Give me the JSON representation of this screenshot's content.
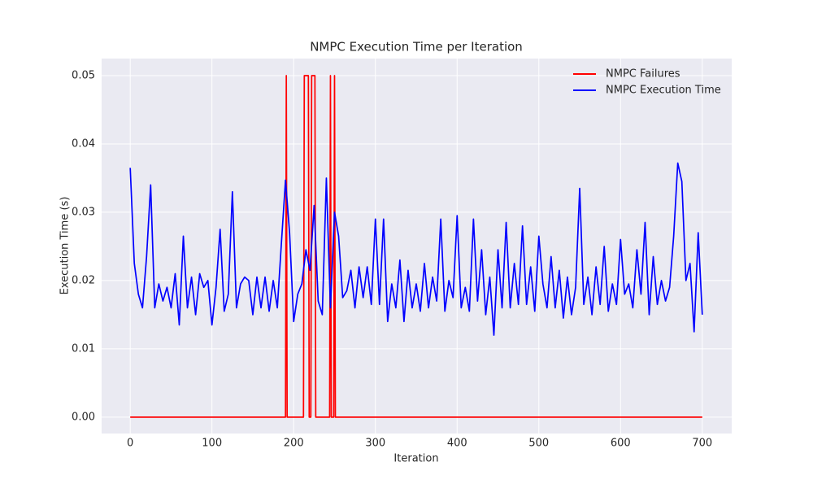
{
  "chart_data": {
    "type": "line",
    "title": "NMPC Execution Time per Iteration",
    "x_label": "Iteration",
    "y_label": "Execution Time (s)",
    "xlim": [
      -35,
      736
    ],
    "ylim": [
      -0.0024,
      0.0525
    ],
    "xticks": [
      0,
      100,
      200,
      300,
      400,
      500,
      600,
      700
    ],
    "yticks": [
      {
        "value": 0,
        "label": "0.00"
      },
      {
        "value": 0.01,
        "label": "0.01"
      },
      {
        "value": 0.02,
        "label": "0.02"
      },
      {
        "value": 0.03,
        "label": "0.03"
      },
      {
        "value": 0.04,
        "label": "0.04"
      },
      {
        "value": 0.05,
        "label": "0.05"
      }
    ],
    "grid": true,
    "legend": "upper right",
    "series": [
      {
        "name": "NMPC Failures",
        "color": "#ff0000",
        "x": [
          0,
          190,
          191,
          192,
          212,
          213,
          218,
          219,
          221,
          222,
          226,
          227,
          244,
          245,
          246,
          249,
          250,
          251,
          700
        ],
        "values": [
          0,
          0,
          0.05,
          0,
          0,
          0.05,
          0.05,
          0,
          0,
          0.05,
          0.05,
          0,
          0,
          0.05,
          0,
          0,
          0.05,
          0,
          0
        ]
      },
      {
        "name": "NMPC Execution Time",
        "color": "#0000ff",
        "x": [
          0,
          5,
          10,
          15,
          20,
          25,
          30,
          35,
          40,
          45,
          50,
          55,
          60,
          65,
          70,
          75,
          80,
          85,
          90,
          95,
          100,
          105,
          110,
          115,
          120,
          125,
          130,
          135,
          140,
          145,
          150,
          155,
          160,
          165,
          170,
          175,
          180,
          185,
          190,
          195,
          200,
          205,
          210,
          215,
          220,
          225,
          230,
          235,
          240,
          245,
          250,
          255,
          260,
          265,
          270,
          275,
          280,
          285,
          290,
          295,
          300,
          305,
          310,
          315,
          320,
          325,
          330,
          335,
          340,
          345,
          350,
          355,
          360,
          365,
          370,
          375,
          380,
          385,
          390,
          395,
          400,
          405,
          410,
          415,
          420,
          425,
          430,
          435,
          440,
          445,
          450,
          455,
          460,
          465,
          470,
          475,
          480,
          485,
          490,
          495,
          500,
          505,
          510,
          515,
          520,
          525,
          530,
          535,
          540,
          545,
          550,
          555,
          560,
          565,
          570,
          575,
          580,
          585,
          590,
          595,
          600,
          605,
          610,
          615,
          620,
          625,
          630,
          635,
          640,
          645,
          650,
          655,
          660,
          665,
          670,
          675,
          680,
          685,
          690,
          695,
          700
        ],
        "values": [
          0.0365,
          0.0225,
          0.018,
          0.016,
          0.0235,
          0.034,
          0.016,
          0.0195,
          0.017,
          0.019,
          0.016,
          0.021,
          0.0135,
          0.0265,
          0.016,
          0.0205,
          0.015,
          0.021,
          0.019,
          0.02,
          0.0135,
          0.019,
          0.0275,
          0.0155,
          0.018,
          0.033,
          0.016,
          0.0195,
          0.0205,
          0.02,
          0.015,
          0.0205,
          0.016,
          0.0205,
          0.0155,
          0.02,
          0.016,
          0.0255,
          0.0347,
          0.027,
          0.014,
          0.018,
          0.0195,
          0.0245,
          0.0215,
          0.031,
          0.017,
          0.015,
          0.035,
          0.016,
          0.03,
          0.0265,
          0.0175,
          0.0185,
          0.0215,
          0.016,
          0.022,
          0.0175,
          0.022,
          0.0165,
          0.029,
          0.0165,
          0.029,
          0.014,
          0.0195,
          0.016,
          0.023,
          0.014,
          0.0215,
          0.016,
          0.0195,
          0.0155,
          0.0225,
          0.016,
          0.0205,
          0.017,
          0.029,
          0.0155,
          0.02,
          0.0175,
          0.0295,
          0.016,
          0.019,
          0.0155,
          0.029,
          0.017,
          0.0245,
          0.015,
          0.0205,
          0.012,
          0.0245,
          0.016,
          0.0285,
          0.016,
          0.0225,
          0.0165,
          0.028,
          0.0165,
          0.022,
          0.0155,
          0.0265,
          0.0195,
          0.016,
          0.0235,
          0.016,
          0.0215,
          0.0145,
          0.0205,
          0.015,
          0.019,
          0.0335,
          0.0165,
          0.0205,
          0.015,
          0.022,
          0.0165,
          0.025,
          0.0155,
          0.0195,
          0.0165,
          0.026,
          0.018,
          0.0195,
          0.016,
          0.0245,
          0.018,
          0.0285,
          0.015,
          0.0235,
          0.0165,
          0.02,
          0.017,
          0.019,
          0.0265,
          0.0372,
          0.0345,
          0.02,
          0.0225,
          0.0125,
          0.027,
          0.015
        ]
      }
    ]
  }
}
